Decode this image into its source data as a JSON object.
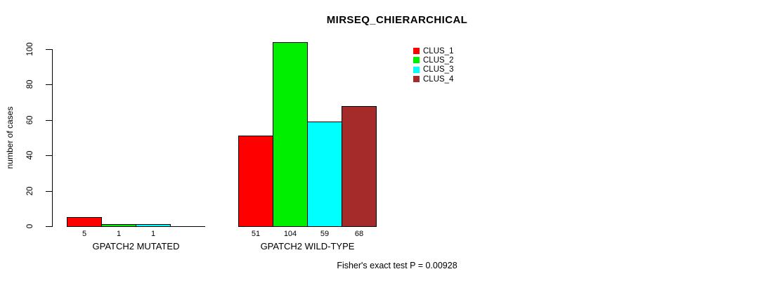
{
  "chart_data": {
    "type": "bar",
    "title": "MIRSEQ_CHIERARCHICAL",
    "xlabel": "",
    "ylabel": "number of cases",
    "ylim": [
      0,
      100
    ],
    "yticks": [
      0,
      20,
      40,
      60,
      80,
      100
    ],
    "grid": false,
    "legend_position": "top-right",
    "categories": [
      "GPATCH2 MUTATED",
      "GPATCH2 WILD-TYPE"
    ],
    "series": [
      {
        "name": "CLUS_1",
        "color": "#FF0000",
        "values": [
          5,
          51
        ]
      },
      {
        "name": "CLUS_2",
        "color": "#00EE00",
        "values": [
          1,
          104
        ]
      },
      {
        "name": "CLUS_3",
        "color": "#00FFFF",
        "values": [
          1,
          59
        ]
      },
      {
        "name": "CLUS_4",
        "color": "#A52A2A",
        "values": [
          0,
          68
        ]
      }
    ],
    "bar_labels": [
      [
        "5",
        "1",
        "1",
        ""
      ],
      [
        "51",
        "104",
        "59",
        "68"
      ]
    ],
    "note": "Fisher's exact test P = 0.00928",
    "axis_color": "#000000",
    "bar_border_color": "#000000"
  }
}
